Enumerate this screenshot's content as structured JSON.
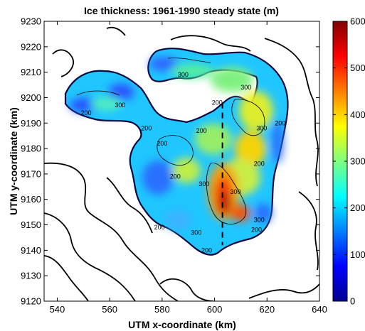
{
  "chart_data": {
    "type": "heatmap",
    "title": "Ice thickness: 1961-1990 steady state (m)",
    "xlabel": "UTM x-coordinate (km)",
    "ylabel": "UTM y-coordinate (km)",
    "xlim": [
      535,
      640
    ],
    "ylim": [
      9120,
      9230
    ],
    "x_ticks": [
      "540",
      "560",
      "580",
      "600",
      "620",
      "640"
    ],
    "y_ticks": [
      "9230",
      "9220",
      "9210",
      "9200",
      "9190",
      "9180",
      "9170",
      "9160",
      "9150",
      "9140",
      "9130",
      "9120"
    ],
    "colorbar": {
      "colormap": "jet",
      "range": [
        0,
        600
      ],
      "ticks": [
        "600",
        "500",
        "400",
        "300",
        "200",
        "100",
        "0"
      ]
    },
    "contour_labels": [
      {
        "text": "300",
        "x": 564,
        "y": 9197
      },
      {
        "text": "200",
        "x": 551,
        "y": 9194
      },
      {
        "text": "200",
        "x": 574,
        "y": 9188
      },
      {
        "text": "300",
        "x": 588,
        "y": 9209
      },
      {
        "text": "300",
        "x": 612,
        "y": 9204
      },
      {
        "text": "200",
        "x": 601,
        "y": 9198
      },
      {
        "text": "200",
        "x": 580,
        "y": 9182
      },
      {
        "text": "200",
        "x": 595,
        "y": 9187
      },
      {
        "text": "300",
        "x": 618,
        "y": 9188
      },
      {
        "text": "200",
        "x": 625,
        "y": 9190
      },
      {
        "text": "200",
        "x": 617,
        "y": 9174
      },
      {
        "text": "200",
        "x": 585,
        "y": 9169
      },
      {
        "text": "300",
        "x": 596,
        "y": 9166
      },
      {
        "text": "300",
        "x": 608,
        "y": 9163
      },
      {
        "text": "300",
        "x": 617,
        "y": 9152
      },
      {
        "text": "200",
        "x": 579,
        "y": 9149
      },
      {
        "text": "300",
        "x": 593,
        "y": 9147
      },
      {
        "text": "200",
        "x": 597,
        "y": 9140
      },
      {
        "text": "200",
        "x": 616,
        "y": 9148
      }
    ],
    "grid": false,
    "section_line": {
      "x": [
        603,
        603
      ],
      "y": [
        9198,
        9142
      ]
    }
  }
}
